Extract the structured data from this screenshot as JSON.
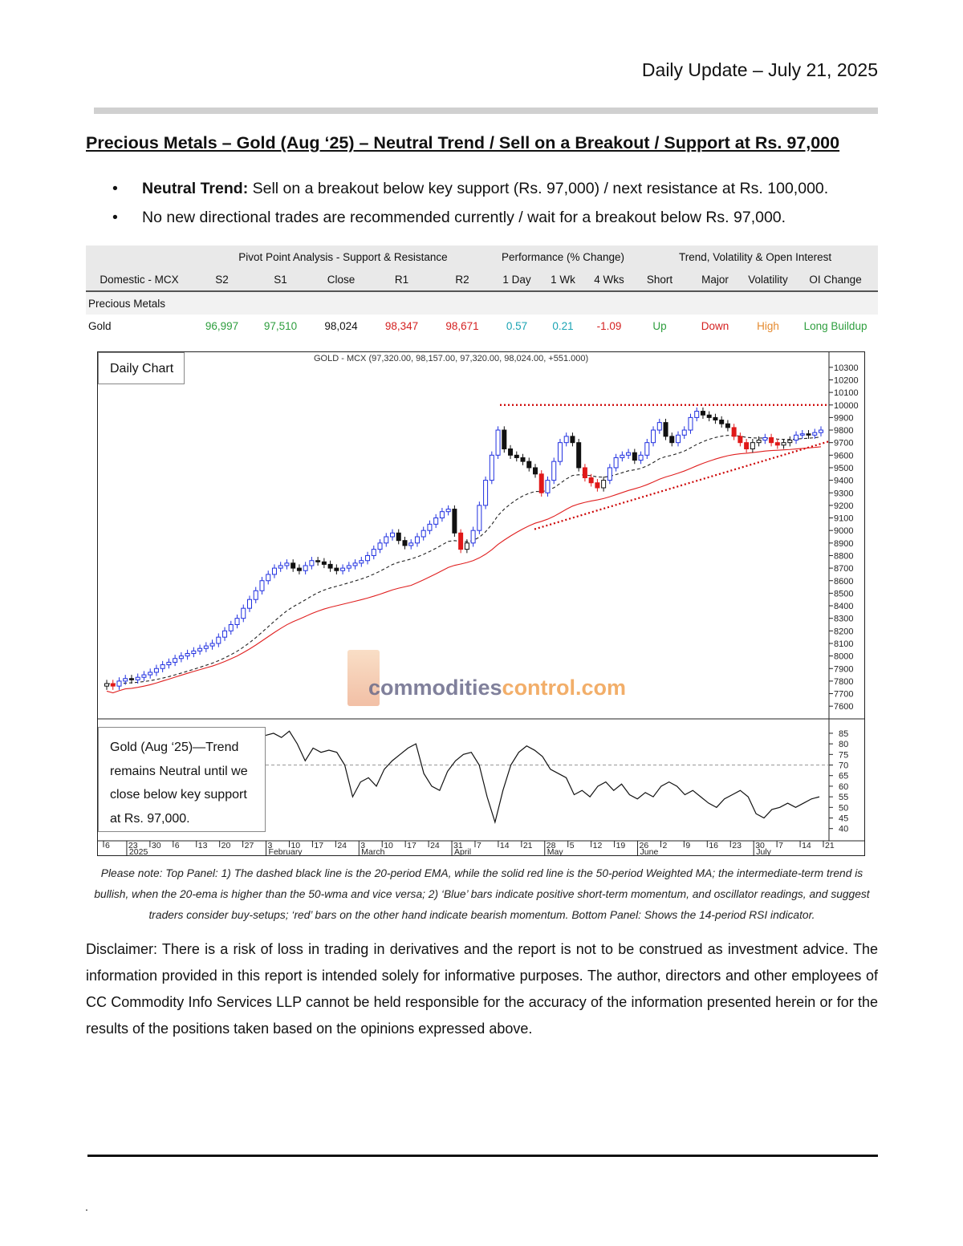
{
  "header": {
    "date": "Daily Update – July 21, 2025"
  },
  "headline": "Precious Metals – Gold (Aug   ‘25) – Neutral Trend / Sell on a Breakout / Support at Rs. 97,000",
  "bullets": [
    {
      "bold": "Neutral Trend:",
      "text": " Sell on a breakout below key support (Rs. 97,000) / next resistance at Rs. 100,000."
    },
    {
      "bold": "",
      "text": "No new directional trades are recommended currently / wait for a breakout below Rs. 97,000."
    }
  ],
  "table": {
    "groups": {
      "pivot": "Pivot Point Analysis - Support & Resistance",
      "performance": "Performance (% Change)",
      "trend": "Trend, Volatility & Open Interest"
    },
    "columns": [
      "Domestic - MCX",
      "S2",
      "S1",
      "Close",
      "R1",
      "R2",
      "1 Day",
      "1 Wk",
      "4 Wks",
      "Short",
      "Major",
      "Volatility",
      "OI Change"
    ],
    "section": "Precious Metals",
    "row": {
      "name": "Gold",
      "s2": "96,997",
      "s1": "97,510",
      "close": "98,024",
      "r1": "98,347",
      "r2": "98,671",
      "d1": "0.57",
      "wk1": "0.21",
      "wk4": "-1.09",
      "short": "Up",
      "major": "Down",
      "volatility": "High",
      "oi": "Long Buildup"
    }
  },
  "chart_data": {
    "type": "candlestick",
    "title": "GOLD - MCX (97,320.00, 98,157.00, 97,320.00, 98,024.00, +551.000)",
    "panel_label": "Daily Chart",
    "y_ticks": [
      "10300",
      "10200",
      "10100",
      "10000",
      "9900",
      "9800",
      "9700",
      "9600",
      "9500",
      "9400",
      "9300",
      "9200",
      "9100",
      "9000",
      "8900",
      "8800",
      "8700",
      "8600",
      "8500",
      "8400",
      "8300",
      "8200",
      "8100",
      "8000",
      "7900",
      "7800",
      "7700",
      "7600"
    ],
    "ylim": [
      7550,
      10350
    ],
    "close_series": [
      7780,
      7760,
      7800,
      7820,
      7810,
      7830,
      7850,
      7870,
      7900,
      7930,
      7950,
      7980,
      8000,
      8020,
      8040,
      8060,
      8080,
      8100,
      8150,
      8200,
      8250,
      8300,
      8380,
      8450,
      8520,
      8600,
      8650,
      8700,
      8720,
      8740,
      8700,
      8680,
      8720,
      8760,
      8750,
      8730,
      8700,
      8680,
      8700,
      8720,
      8740,
      8760,
      8800,
      8850,
      8900,
      8950,
      8980,
      8920,
      8880,
      8900,
      8950,
      9000,
      9050,
      9100,
      9150,
      9170,
      8980,
      8850,
      8900,
      9000,
      9200,
      9400,
      9600,
      9800,
      9650,
      9600,
      9580,
      9550,
      9500,
      9450,
      9300,
      9400,
      9550,
      9700,
      9750,
      9700,
      9500,
      9420,
      9380,
      9340,
      9400,
      9500,
      9580,
      9600,
      9620,
      9560,
      9600,
      9700,
      9800,
      9860,
      9750,
      9700,
      9760,
      9800,
      9900,
      9950,
      9920,
      9900,
      9880,
      9850,
      9820,
      9750,
      9700,
      9650,
      9700,
      9720,
      9740,
      9700,
      9680,
      9700,
      9720,
      9760,
      9770,
      9760,
      9780,
      9800
    ],
    "rsi_label": "Gold (Aug   ‘25)—Trend remains Neutral until we close below key support at Rs. 97,000.",
    "rsi_ticks": [
      "85",
      "80",
      "75",
      "70",
      "65",
      "60",
      "55",
      "50",
      "45",
      "40"
    ],
    "rsi_series": [
      84,
      85,
      83,
      86,
      80,
      72,
      78,
      76,
      77,
      76,
      70,
      55,
      62,
      64,
      60,
      68,
      72,
      75,
      78,
      80,
      66,
      60,
      58,
      67,
      72,
      75,
      76,
      70,
      55,
      43,
      58,
      70,
      76,
      79,
      77,
      74,
      68,
      66,
      64,
      56,
      58,
      55,
      60,
      62,
      58,
      61,
      56,
      54,
      57,
      55,
      60,
      62,
      60,
      56,
      58,
      55,
      52,
      50,
      54,
      56,
      58,
      55,
      47,
      45,
      49,
      50,
      52,
      50,
      52,
      54,
      55
    ],
    "x_ticks": [
      "6",
      "23",
      "30",
      "6",
      "13",
      "20",
      "27",
      "3",
      "10",
      "17",
      "24",
      "3",
      "10",
      "17",
      "24",
      "31",
      "7",
      "14",
      "21",
      "28",
      "5",
      "12",
      "19",
      "26",
      "2",
      "9",
      "16",
      "23",
      "30",
      "7",
      "14",
      "21"
    ],
    "months": [
      "2025",
      "February",
      "March",
      "April",
      "May",
      "June",
      "July"
    ],
    "support_level": 97000,
    "resistance_level": 100000
  },
  "watermark": {
    "part1": "commodities",
    "part2": "control.com"
  },
  "note": "Please note: Top Panel: 1) The dashed black line is the 20-period EMA, while the solid red line is the 50-period Weighted MA; the intermediate-term trend is bullish, when the 20-ema is higher than the 50-wma and vice versa; 2)   ‘Blue’   bars indicate positive short-term momentum, and oscillator readings, and suggest traders consider buy-setups;   ‘red’   bars on the other hand indicate bearish momentum. Bottom Panel: Shows the 14-period RSI indicator.",
  "disclaimer": "Disclaimer: There is a risk of loss in trading in derivatives and the report is not to be construed as investment advice. The information provided in this report is intended solely for informative purposes. The author, directors and other employees of CC Commodity Info Services LLP cannot be held responsible for the accuracy of the information presented herein or for the results of the positions taken based on the opinions expressed above.",
  "footer_dot": "."
}
